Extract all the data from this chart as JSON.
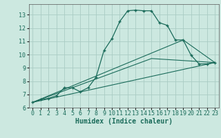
{
  "xlabel": "Humidex (Indice chaleur)",
  "bg_color": "#cce8e0",
  "grid_color": "#aaccc4",
  "line_color": "#1a6b5a",
  "xlim": [
    -0.5,
    23.5
  ],
  "ylim": [
    6,
    13.8
  ],
  "yticks": [
    6,
    7,
    8,
    9,
    10,
    11,
    12,
    13
  ],
  "xticks": [
    0,
    1,
    2,
    3,
    4,
    5,
    6,
    7,
    8,
    9,
    10,
    11,
    12,
    13,
    14,
    15,
    16,
    17,
    18,
    19,
    20,
    21,
    22,
    23
  ],
  "line1_x": [
    0,
    1,
    2,
    3,
    4,
    5,
    6,
    7,
    8,
    9,
    10,
    11,
    12,
    13,
    14,
    15,
    16,
    17,
    18,
    19,
    20,
    21,
    22,
    23
  ],
  "line1_y": [
    6.4,
    6.6,
    6.7,
    6.9,
    7.5,
    7.5,
    7.2,
    7.5,
    8.3,
    10.3,
    11.2,
    12.5,
    13.3,
    13.35,
    13.3,
    13.3,
    12.4,
    12.2,
    11.1,
    11.1,
    9.95,
    9.3,
    9.3,
    9.4
  ],
  "line2_x": [
    0,
    23
  ],
  "line2_y": [
    6.4,
    9.4
  ],
  "line3_x": [
    0,
    19,
    23
  ],
  "line3_y": [
    6.4,
    11.1,
    9.4
  ],
  "line4_x": [
    0,
    15,
    23
  ],
  "line4_y": [
    6.4,
    9.7,
    9.4
  ],
  "tick_fontsize": 6,
  "label_fontsize": 7
}
